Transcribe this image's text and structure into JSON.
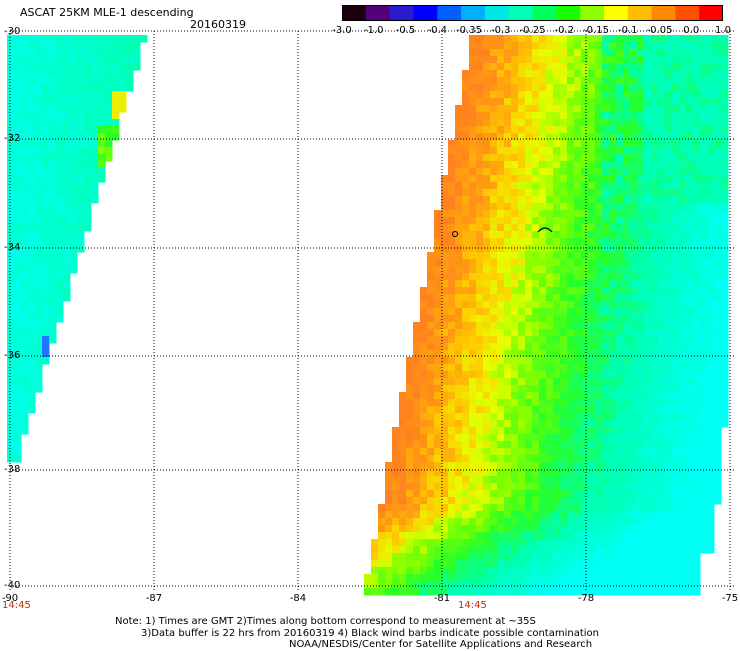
{
  "header": {
    "title": "ASCAT 25KM MLE-1 descending",
    "date": "20160319"
  },
  "colorbar": {
    "ticks": [
      "-3.0",
      "-1.0",
      "-0.5",
      "-0.4",
      "-0.35",
      "-0.3",
      "-0.25",
      "-0.2",
      "-0.15",
      "-0.1",
      "-0.05",
      "0.0",
      "1.0"
    ],
    "colors": [
      "#1a0010",
      "#55007a",
      "#2a1acc",
      "#0000ff",
      "#0060ff",
      "#00b0ff",
      "#00e5e5",
      "#00ffb4",
      "#00ff5a",
      "#1aff00",
      "#8cff00",
      "#ffff00",
      "#ffbe00",
      "#ff8a00",
      "#ff5000",
      "#ff0000"
    ]
  },
  "axes": {
    "lat_labels": [
      "-30",
      "-32",
      "-34",
      "-36",
      "-38",
      "-40"
    ],
    "lon_labels": [
      "-90",
      "-87",
      "-84",
      "-81",
      "-78",
      "-75"
    ]
  },
  "times": {
    "left": "14:45",
    "center": "14:45"
  },
  "notes": {
    "line1": "Note: 1) Times are GMT 2)Times along bottom correspond to measurement at ~35S",
    "line2": "3)Data buffer is 22 hrs from 20160319 4) Black wind barbs indicate possible contamination",
    "line3": "NOAA/NESDIS/Center for Satellite Applications and Research"
  }
}
